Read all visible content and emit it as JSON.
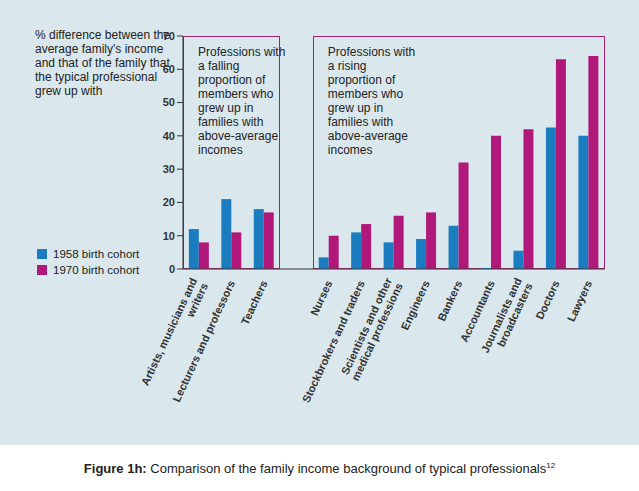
{
  "chart_data": {
    "type": "bar",
    "title": "Figure 1h: Comparison of the family income background of typical professionals",
    "title_note": "12",
    "y_label": "% difference between the average family's income and that of the family that the typical professional grew up with",
    "categories": [
      "Artists, musicians and writers",
      "Lecturers and professors",
      "Teachers",
      null,
      "Nurses",
      "Stockbrokers and traders",
      "Scientists and other medical professions",
      "Engineers",
      "Bankers",
      "Accountants",
      "Journalists and broadcasters",
      "Doctors",
      "Lawyers"
    ],
    "series": [
      {
        "name": "1958 birth cohort",
        "color": "#1b7dc0",
        "values": [
          12,
          21,
          18,
          null,
          3.5,
          11,
          8,
          9,
          13,
          0.3,
          5.5,
          42.5,
          40
        ]
      },
      {
        "name": "1970 birth cohort",
        "color": "#b0187a",
        "values": [
          8,
          11,
          17,
          null,
          10,
          13.5,
          16,
          17,
          32,
          40,
          42,
          63,
          64
        ]
      }
    ],
    "ylim": [
      0,
      70
    ],
    "yticks": [
      0,
      10,
      20,
      30,
      40,
      50,
      60,
      70
    ],
    "annotations": [
      {
        "text": "Professions with a falling proportion of members who grew up in families with above-average incomes",
        "color": "#a5216f"
      },
      {
        "text": "Professions with a rising proportion of members who grew up in families with above-average incomes",
        "color": "#a5216f"
      }
    ],
    "legend": "left",
    "grid": false
  }
}
